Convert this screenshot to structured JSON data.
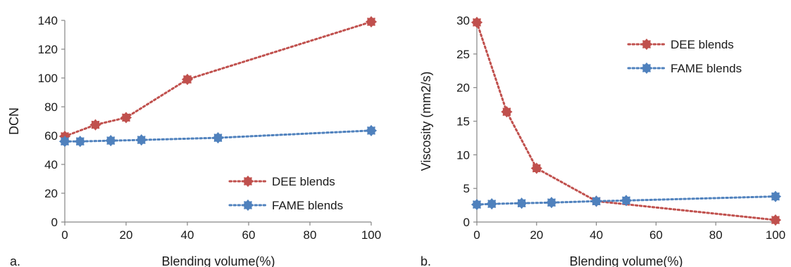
{
  "colors": {
    "dee": "#C0504D",
    "fame": "#4F81BD",
    "axis": "#868686"
  },
  "chart_data": [
    {
      "type": "line",
      "panel_label": "a.",
      "xlabel": "Blending volume(%)",
      "ylabel": "DCN",
      "xlim": [
        0,
        100
      ],
      "ylim": [
        0,
        140
      ],
      "xticks": [
        0,
        20,
        40,
        60,
        80,
        100
      ],
      "yticks": [
        0,
        20,
        40,
        60,
        80,
        100,
        120,
        140
      ],
      "grid": false,
      "legend_position": "bottom-right",
      "series": [
        {
          "name": "DEE blends",
          "color": "#C0504D",
          "x": [
            0,
            10,
            20,
            40,
            100
          ],
          "y": [
            59.5,
            67.5,
            72.5,
            99,
            139
          ]
        },
        {
          "name": "FAME blends",
          "color": "#4F81BD",
          "x": [
            0,
            5,
            15,
            25,
            50,
            100
          ],
          "y": [
            56,
            56,
            56.5,
            57,
            58.5,
            63.5
          ]
        }
      ]
    },
    {
      "type": "line",
      "panel_label": "b.",
      "xlabel": "Blending volume(%)",
      "ylabel": "Viscosity (mm2/s)",
      "xlim": [
        0,
        100
      ],
      "ylim": [
        0,
        30
      ],
      "xticks": [
        0,
        20,
        40,
        60,
        80,
        100
      ],
      "yticks": [
        0,
        5,
        10,
        15,
        20,
        25,
        30
      ],
      "grid": false,
      "legend_position": "top-right",
      "series": [
        {
          "name": "DEE blends",
          "color": "#C0504D",
          "x": [
            0,
            10,
            20,
            40,
            100
          ],
          "y": [
            29.7,
            16.4,
            8.0,
            3.1,
            0.3
          ]
        },
        {
          "name": "FAME blends",
          "color": "#4F81BD",
          "x": [
            0,
            5,
            15,
            25,
            40,
            50,
            100
          ],
          "y": [
            2.6,
            2.7,
            2.8,
            2.9,
            3.1,
            3.2,
            3.8
          ]
        }
      ]
    }
  ]
}
